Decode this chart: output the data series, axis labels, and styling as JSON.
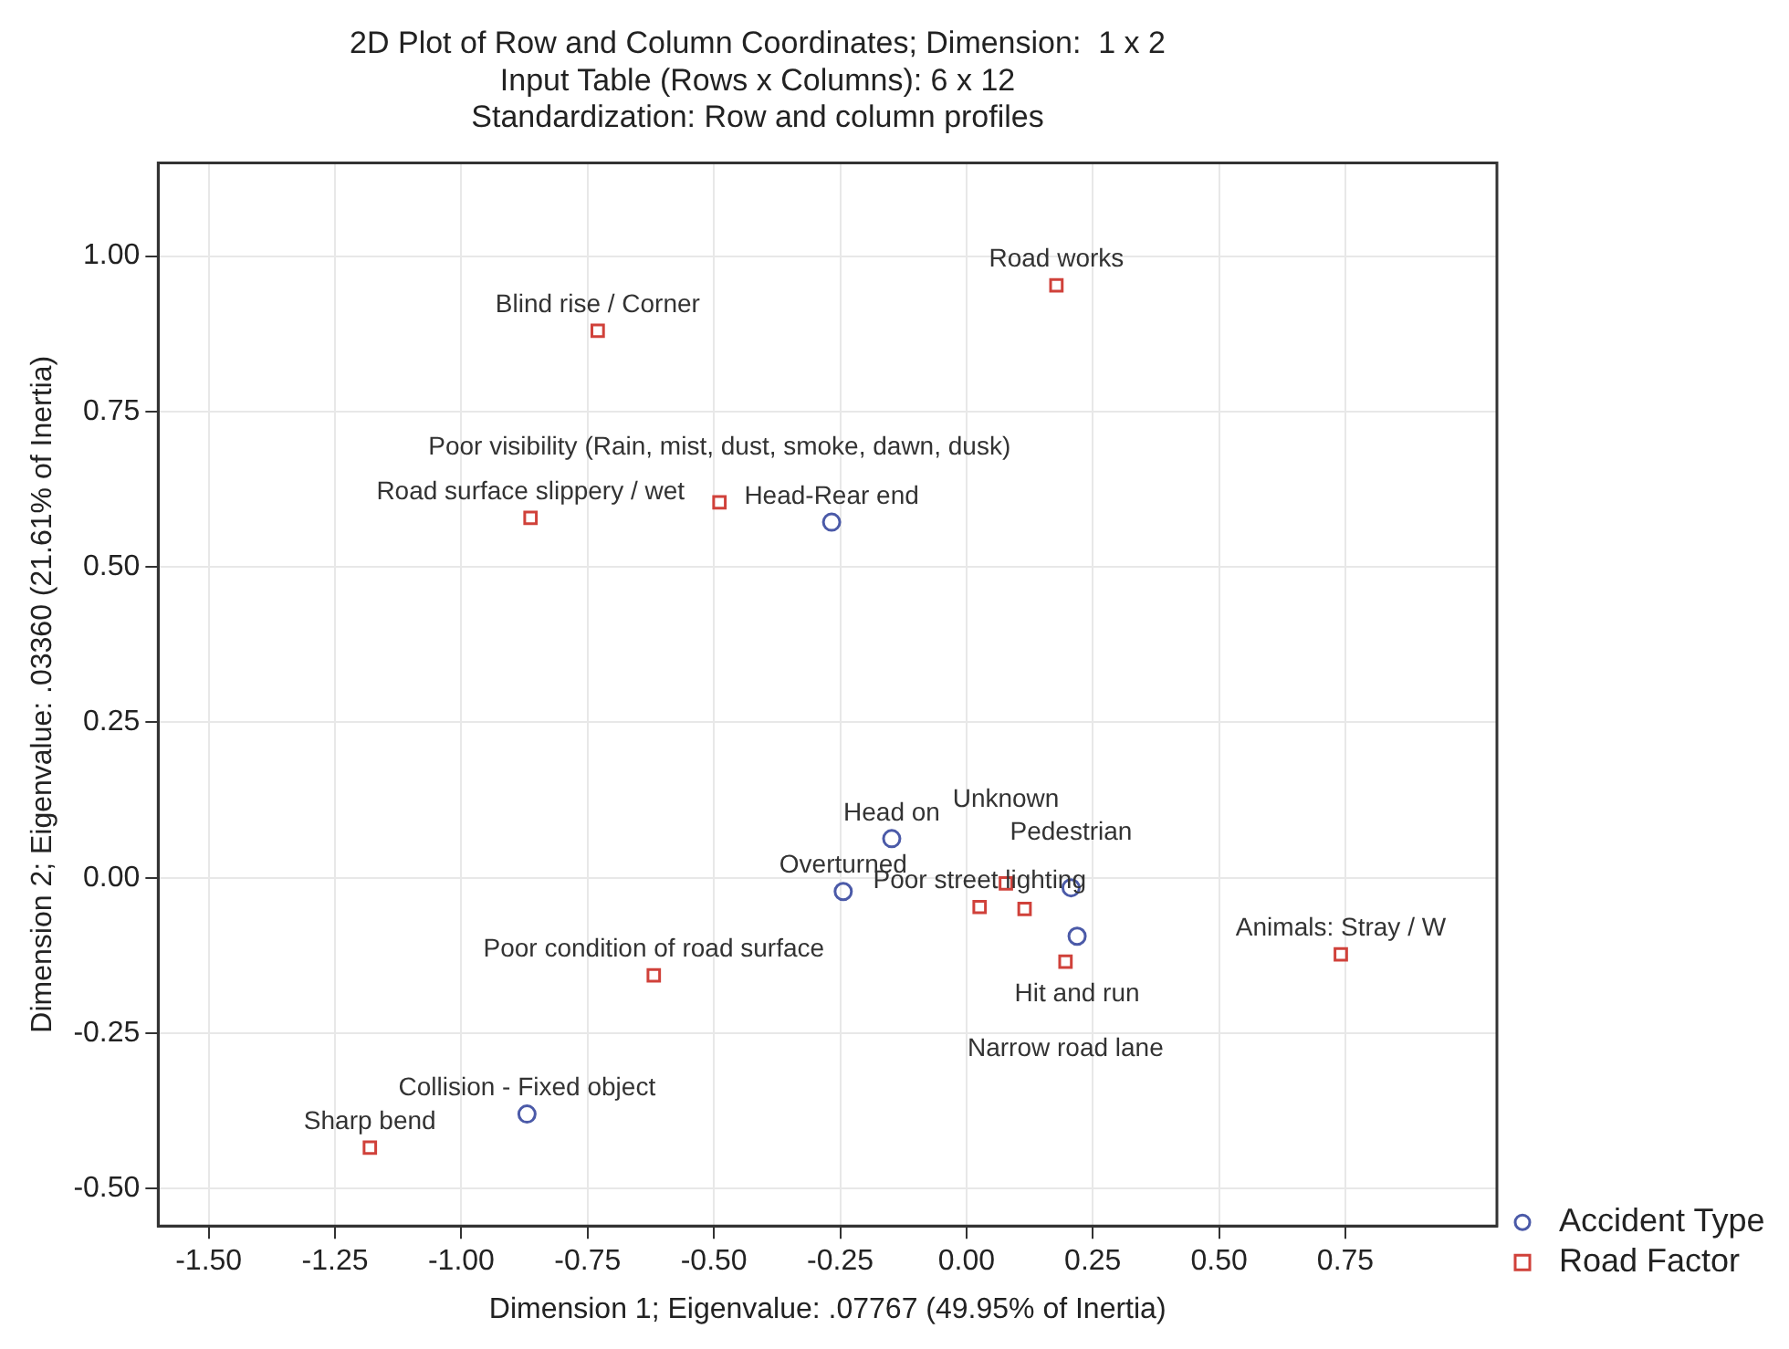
{
  "chart_data": {
    "type": "scatter",
    "title": "2D Plot of Row and Column Coordinates; Dimension:  1 x 2",
    "subtitle": "Input Table (Rows x Columns): 6 x 12\nStandardization: Row and column profiles",
    "xlabel": "Dimension 1; Eigenvalue: .07767 (49.95% of Inertia)",
    "ylabel": "Dimension 2; Eigenvalue: .03360 (21.61% of Inertia)",
    "series": [
      {
        "name": "Accident Type",
        "color": "#4b5aa8",
        "marker": "circle",
        "x": [
          -0.148,
          -0.244,
          -0.267,
          -0.87,
          0.207,
          0.219
        ],
        "values": [
          0.063,
          -0.022,
          0.572,
          -0.38,
          -0.016,
          -0.094
        ]
      },
      {
        "name": "Road Factor",
        "color": "#d0413a",
        "marker": "square",
        "x": [
          0.178,
          -0.73,
          -0.863,
          -0.489,
          -0.619,
          -1.181,
          0.741,
          0.196,
          0.026,
          0.078,
          0.115
        ],
        "values": [
          0.953,
          0.88,
          0.579,
          0.604,
          -0.157,
          -0.434,
          -0.123,
          -0.135,
          -0.047,
          -0.009,
          -0.05
        ]
      }
    ],
    "annotations": [
      {
        "text": "Head on",
        "x": -0.148,
        "y": 0.063
      },
      {
        "text": "Overturned",
        "x": -0.244,
        "y": -0.022
      },
      {
        "text": "Head-Rear end",
        "x": -0.267,
        "y": 0.572
      },
      {
        "text": "Collision - Fixed object",
        "x": -0.87,
        "y": -0.38
      },
      {
        "text": "Pedestrian",
        "x": 0.207,
        "y": -0.016
      },
      {
        "text": "Hit and run",
        "x": 0.219,
        "y": -0.094
      },
      {
        "text": "Road works",
        "x": 0.178,
        "y": 0.953
      },
      {
        "text": "Blind rise / Corner",
        "x": -0.73,
        "y": 0.88
      },
      {
        "text": "Road surface slippery / wet",
        "x": -0.863,
        "y": 0.579
      },
      {
        "text": "Poor visibility (Rain, mist, dust, smoke, dawn, dusk)",
        "x": -0.489,
        "y": 0.604
      },
      {
        "text": "Poor condition of road surface",
        "x": -0.619,
        "y": -0.157
      },
      {
        "text": "Sharp bend",
        "x": -1.181,
        "y": -0.434
      },
      {
        "text": "Animals: Stray / W",
        "x": 0.741,
        "y": -0.123
      },
      {
        "text": "Narrow road lane",
        "x": 0.196,
        "y": -0.135
      },
      {
        "text": "Poor street lighting",
        "x": 0.026,
        "y": -0.047
      },
      {
        "text": "Unknown",
        "x": 0.078,
        "y": -0.009
      }
    ],
    "xlim": [
      -1.6,
      1.05
    ],
    "xticks": [
      {
        "value": -1.5,
        "label": "-1.50"
      },
      {
        "value": -1.25,
        "label": "-1.25"
      },
      {
        "value": -1,
        "label": "-1.00"
      },
      {
        "value": -0.75,
        "label": "-0.75"
      },
      {
        "value": -0.5,
        "label": "-0.50"
      },
      {
        "value": -0.25,
        "label": "-0.25"
      },
      {
        "value": 0,
        "label": "0.00"
      },
      {
        "value": 0.25,
        "label": "0.25"
      },
      {
        "value": 0.5,
        "label": "0.50"
      },
      {
        "value": 0.75,
        "label": "0.75"
      }
    ],
    "ylim": [
      -0.56,
      1.15
    ],
    "yticks": [
      {
        "value": -0.5,
        "label": "-0.50"
      },
      {
        "value": -0.25,
        "label": "-0.25"
      },
      {
        "value": 0,
        "label": "0.00"
      },
      {
        "value": 0.25,
        "label": "0.25"
      },
      {
        "value": 0.5,
        "label": "0.50"
      },
      {
        "value": 0.75,
        "label": "0.75"
      },
      {
        "value": 1,
        "label": "1.00"
      }
    ],
    "grid": true,
    "legend": "bottom right"
  }
}
